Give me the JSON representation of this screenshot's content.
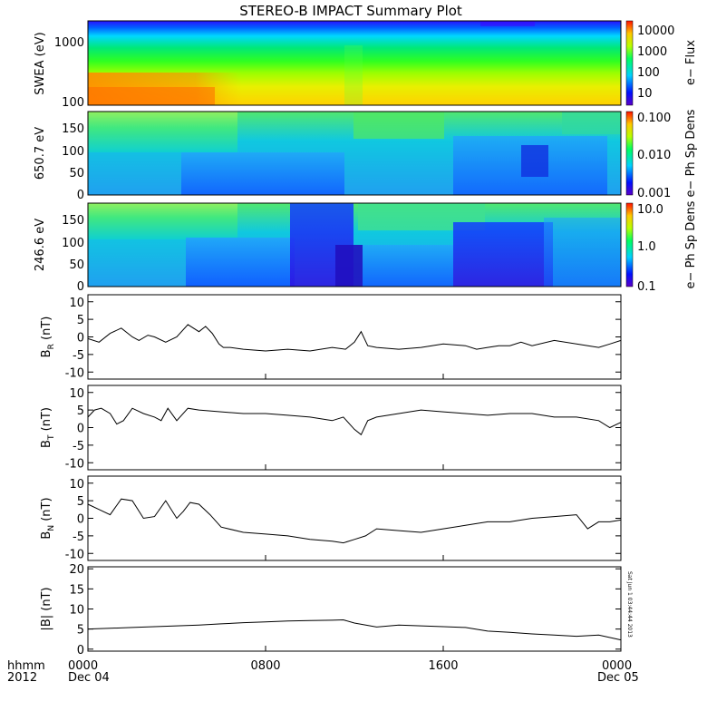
{
  "figure": {
    "title": "STEREO-B IMPACT Summary Plot",
    "timestamp": "Sat Jun 1 03:44:44 2013",
    "x_labels": {
      "left_top": "hhmm",
      "left_bottom": "2012",
      "ticks": [
        "0000",
        "0800",
        "1600",
        "0000"
      ],
      "dates": [
        "Dec 04",
        "Dec 05"
      ]
    }
  },
  "chart_data": [
    {
      "id": "swea",
      "type": "heatmap",
      "ylabel": "SWEA (eV)",
      "y_ticks": [
        "1000",
        "100"
      ],
      "colorbar": {
        "label": "e− Flux",
        "ticks": [
          "10000",
          "1000",
          "100",
          "10"
        ]
      },
      "description_levels": "high flux at low energy in first 6 hours"
    },
    {
      "id": "pad650",
      "type": "heatmap",
      "ylabel": "650.7 eV",
      "y_ticks": [
        "150",
        "100",
        "50",
        "0"
      ],
      "colorbar": {
        "label": "e− Ph Sp Dens",
        "ticks": [
          "0.100",
          "0.010",
          "0.001"
        ]
      }
    },
    {
      "id": "pad246",
      "type": "heatmap",
      "ylabel": "246.6 eV",
      "y_ticks": [
        "150",
        "100",
        "50",
        "0"
      ],
      "colorbar": {
        "label": "e− Ph Sp Dens",
        "ticks": [
          "10.0",
          "1.0",
          "0.1"
        ]
      }
    },
    {
      "id": "br",
      "type": "line",
      "ylabel": "B_R (nT)",
      "ylabel_main": "B",
      "ylabel_sub": "R",
      "ylabel_unit": "(nT)",
      "ylim": [
        -12,
        12
      ],
      "y_ticks": [
        10,
        5,
        0,
        -5,
        -10
      ],
      "x_hours": [
        0,
        0.5,
        1,
        1.5,
        2,
        2.3,
        2.7,
        3,
        3.5,
        4,
        4.5,
        5,
        5.3,
        5.6,
        5.9,
        6.1,
        6.4,
        7,
        8,
        9,
        10,
        11,
        11.6,
        12,
        12.3,
        12.6,
        13,
        14,
        15,
        16,
        17,
        17.5,
        18,
        18.5,
        19,
        19.5,
        20,
        21,
        22,
        23,
        23.5,
        24
      ],
      "values": [
        -0.5,
        -1.5,
        1,
        2.5,
        0,
        -1,
        0.5,
        0,
        -1.5,
        0,
        3.5,
        1.5,
        3,
        1,
        -2,
        -3,
        -3,
        -3.5,
        -4,
        -3.5,
        -4,
        -3,
        -3.5,
        -1.5,
        1.5,
        -2.5,
        -3,
        -3.5,
        -3,
        -2,
        -2.5,
        -3.5,
        -3,
        -2.5,
        -2.5,
        -1.5,
        -2.5,
        -1,
        -2,
        -3,
        -2,
        -1
      ]
    },
    {
      "id": "bt",
      "type": "line",
      "ylabel": "B_T (nT)",
      "ylabel_main": "B",
      "ylabel_sub": "T",
      "ylabel_unit": "(nT)",
      "ylim": [
        -12,
        12
      ],
      "y_ticks": [
        10,
        5,
        0,
        -5,
        -10
      ],
      "x_hours": [
        0,
        0.3,
        0.6,
        1,
        1.3,
        1.6,
        2,
        2.5,
        3,
        3.3,
        3.6,
        4,
        4.5,
        5,
        6,
        7,
        8,
        9,
        10,
        11,
        11.5,
        12,
        12.3,
        12.6,
        13,
        14,
        15,
        16,
        17,
        18,
        19,
        20,
        21,
        22,
        23,
        23.5,
        24
      ],
      "values": [
        3,
        5,
        5.5,
        4,
        1,
        2,
        5.5,
        4,
        3,
        2,
        5.5,
        2,
        5.5,
        5,
        4.5,
        4,
        4,
        3.5,
        3,
        2,
        3,
        -0.5,
        -2,
        2,
        3,
        4,
        5,
        4.5,
        4,
        3.5,
        4,
        4,
        3,
        3,
        2,
        0,
        1.5
      ]
    },
    {
      "id": "bn",
      "type": "line",
      "ylabel": "B_N (nT)",
      "ylabel_main": "B",
      "ylabel_sub": "N",
      "ylabel_unit": "(nT)",
      "ylim": [
        -12,
        12
      ],
      "y_ticks": [
        10,
        5,
        0,
        -5,
        -10
      ],
      "x_hours": [
        0,
        0.5,
        1,
        1.5,
        2,
        2.5,
        3,
        3.5,
        4,
        4.3,
        4.6,
        5,
        5.5,
        6,
        7,
        8,
        9,
        10,
        11,
        11.5,
        12,
        12.5,
        13,
        14,
        15,
        16,
        17,
        18,
        19,
        20,
        21,
        22,
        22.5,
        23,
        23.5,
        24
      ],
      "values": [
        4,
        2.5,
        1,
        5.5,
        5,
        0,
        0.5,
        5,
        0,
        2,
        4.5,
        4,
        1,
        -2.5,
        -4,
        -4.5,
        -5,
        -6,
        -6.5,
        -7,
        -6,
        -5,
        -3,
        -3.5,
        -4,
        -3,
        -2,
        -1,
        -1,
        0,
        0.5,
        1,
        -3,
        -1,
        -1,
        -0.5
      ]
    },
    {
      "id": "bmag",
      "type": "line",
      "ylabel": "|B| (nT)",
      "ylim": [
        -0.5,
        20.5
      ],
      "y_ticks": [
        20,
        15,
        10,
        5,
        0
      ],
      "x_hours": [
        0,
        1,
        2,
        3,
        4,
        5,
        6,
        7,
        8,
        9,
        10,
        11,
        11.5,
        12,
        13,
        14,
        15,
        16,
        17,
        18,
        19,
        20,
        21,
        22,
        23,
        24
      ],
      "values": [
        5,
        5.2,
        5.4,
        5.6,
        5.8,
        6,
        6.3,
        6.6,
        6.8,
        7,
        7.1,
        7.2,
        7.3,
        6.5,
        5.5,
        6,
        5.8,
        5.6,
        5.4,
        4.5,
        4.2,
        3.8,
        3.5,
        3.2,
        3.5,
        2.3
      ]
    }
  ]
}
